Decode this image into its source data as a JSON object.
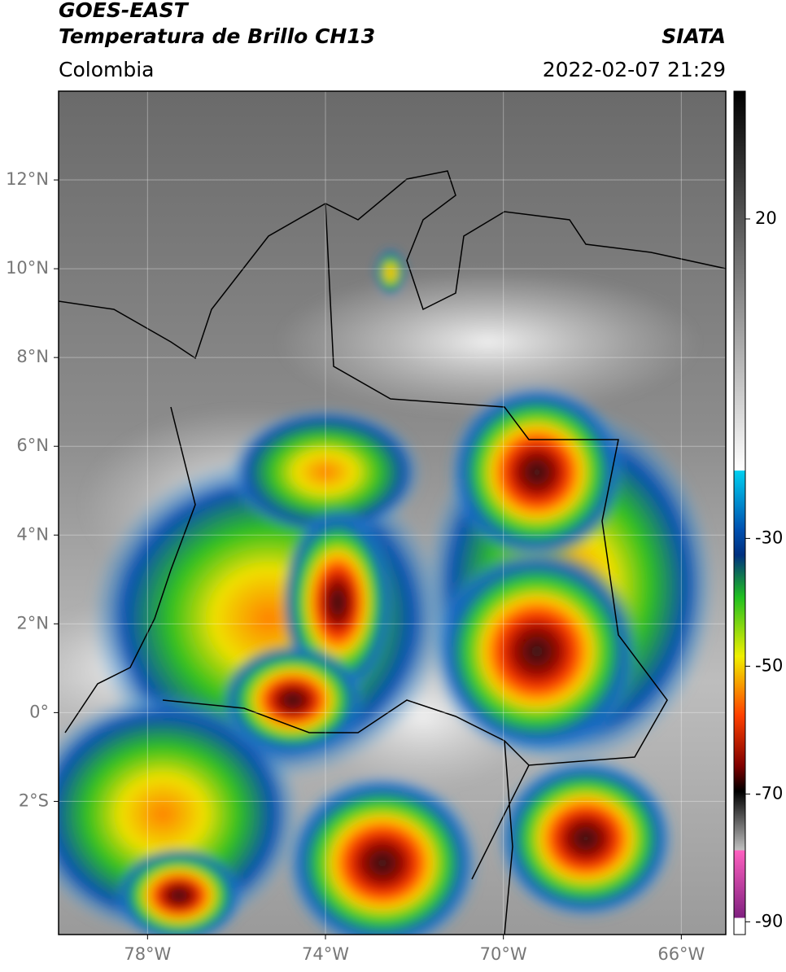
{
  "map": {
    "title": "GOES-EAST",
    "subtitle": "Temperatura de Brillo CH13",
    "source": "SIATA",
    "region": "Colombia",
    "datetime": "2022-02-07 21:29",
    "lonlim": [
      -80,
      -65
    ],
    "latlim": [
      -5,
      14
    ],
    "lon_ticks": [
      {
        "value": -78,
        "label": "78°W"
      },
      {
        "value": -74,
        "label": "74°W"
      },
      {
        "value": -70,
        "label": "70°W"
      },
      {
        "value": -66,
        "label": "66°W"
      }
    ],
    "lat_ticks": [
      {
        "value": 12,
        "label": "12°N"
      },
      {
        "value": 10,
        "label": "10°N"
      },
      {
        "value": 8,
        "label": "8°N"
      },
      {
        "value": 6,
        "label": "6°N"
      },
      {
        "value": 4,
        "label": "4°N"
      },
      {
        "value": 2,
        "label": "2°N"
      },
      {
        "value": 0,
        "label": "0°"
      },
      {
        "value": -2,
        "label": "2°S"
      }
    ],
    "colorbar": {
      "range": [
        40,
        -92
      ],
      "ticks": [
        20,
        -30,
        -50,
        -70,
        -90
      ]
    }
  }
}
